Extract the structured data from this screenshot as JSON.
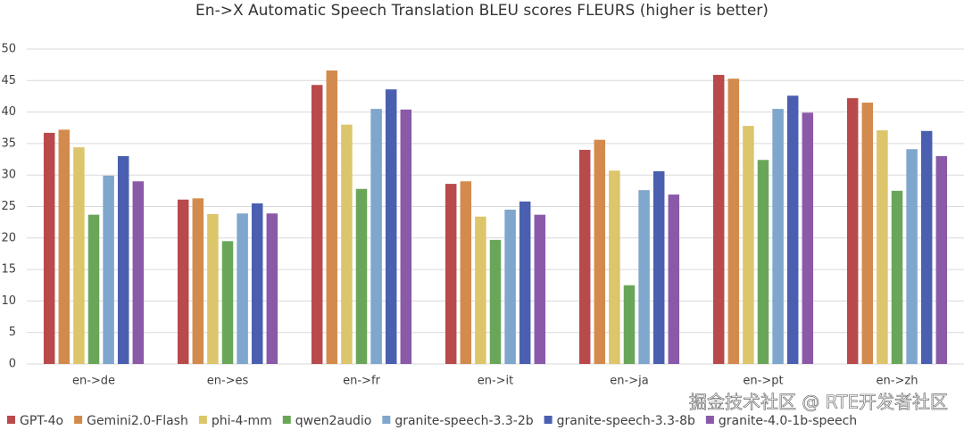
{
  "chart_data": {
    "type": "bar",
    "title": "En->X Automatic Speech Translation BLEU scores FLEURS (higher is better)",
    "categories": [
      "en->de",
      "en->es",
      "en->fr",
      "en->it",
      "en->ja",
      "en->pt",
      "en->zh"
    ],
    "series": [
      {
        "name": "GPT-4o",
        "color": "#b94a4b",
        "values": [
          36.7,
          26.1,
          44.3,
          28.6,
          34.0,
          45.9,
          42.2
        ]
      },
      {
        "name": "Gemini2.0-Flash",
        "color": "#d38b4d",
        "values": [
          37.2,
          26.3,
          46.6,
          29.0,
          35.6,
          45.3,
          41.5
        ]
      },
      {
        "name": "phi-4-mm",
        "color": "#dcc56b",
        "values": [
          34.4,
          23.8,
          38.0,
          23.4,
          30.7,
          37.8,
          37.1
        ]
      },
      {
        "name": "qwen2audio",
        "color": "#6aa65a",
        "values": [
          23.7,
          19.5,
          27.8,
          19.7,
          12.5,
          32.4,
          27.5
        ]
      },
      {
        "name": "granite-speech-3.3-2b",
        "color": "#7fa6cc",
        "values": [
          29.9,
          23.9,
          40.5,
          24.5,
          27.6,
          40.5,
          34.1
        ]
      },
      {
        "name": "granite-speech-3.3-8b",
        "color": "#4a5fb0",
        "values": [
          33.0,
          25.5,
          43.6,
          25.8,
          30.6,
          42.6,
          37.0
        ]
      },
      {
        "name": "granite-4.0-1b-speech",
        "color": "#8a5aa9",
        "values": [
          29.0,
          23.9,
          40.4,
          23.7,
          26.9,
          39.9,
          33.0
        ]
      }
    ],
    "ylim": [
      0,
      50
    ],
    "yticks": [
      0,
      5,
      10,
      15,
      20,
      25,
      30,
      35,
      40,
      45,
      50
    ],
    "grid": true,
    "legend": "bottom",
    "watermark": "掘金技术社区 @ RTE开发者社区"
  }
}
